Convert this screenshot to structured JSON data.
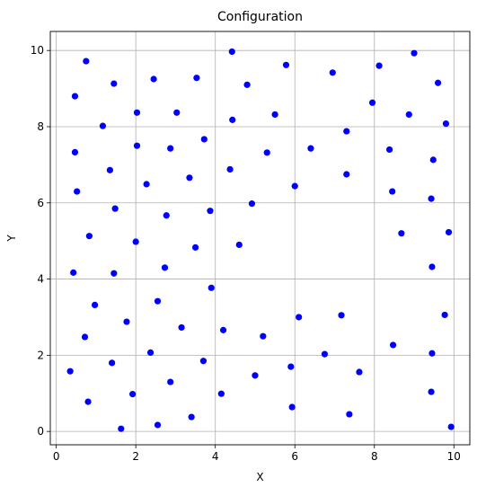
{
  "chart_data": {
    "type": "scatter",
    "title": "Configuration",
    "xlabel": "X",
    "ylabel": "Y",
    "xlim": [
      -0.15,
      10.4
    ],
    "ylim": [
      -0.35,
      10.5
    ],
    "xticks": [
      0,
      2,
      4,
      6,
      8,
      10
    ],
    "yticks": [
      0,
      2,
      4,
      6,
      8,
      10
    ],
    "grid": true,
    "marker_color": "#0000ff",
    "grid_color": "#b0b0b0",
    "points": [
      [
        0.75,
        9.72
      ],
      [
        0.47,
        8.8
      ],
      [
        1.45,
        9.13
      ],
      [
        2.45,
        9.25
      ],
      [
        3.53,
        9.28
      ],
      [
        4.42,
        9.97
      ],
      [
        4.8,
        9.1
      ],
      [
        5.78,
        9.62
      ],
      [
        6.95,
        9.42
      ],
      [
        8.12,
        9.6
      ],
      [
        9.0,
        9.93
      ],
      [
        9.6,
        9.15
      ],
      [
        1.17,
        8.02
      ],
      [
        2.03,
        8.37
      ],
      [
        3.03,
        8.37
      ],
      [
        4.43,
        8.18
      ],
      [
        5.5,
        8.32
      ],
      [
        7.95,
        8.63
      ],
      [
        8.87,
        8.32
      ],
      [
        9.8,
        8.08
      ],
      [
        7.3,
        7.88
      ],
      [
        3.72,
        7.67
      ],
      [
        0.47,
        7.33
      ],
      [
        2.03,
        7.5
      ],
      [
        2.87,
        7.43
      ],
      [
        5.3,
        7.32
      ],
      [
        6.4,
        7.43
      ],
      [
        8.38,
        7.4
      ],
      [
        9.48,
        7.13
      ],
      [
        1.35,
        6.86
      ],
      [
        4.37,
        6.88
      ],
      [
        3.35,
        6.66
      ],
      [
        7.3,
        6.75
      ],
      [
        2.27,
        6.49
      ],
      [
        0.52,
        6.3
      ],
      [
        8.45,
        6.3
      ],
      [
        6.0,
        6.44
      ],
      [
        9.43,
        6.11
      ],
      [
        4.92,
        5.98
      ],
      [
        1.48,
        5.85
      ],
      [
        3.87,
        5.79
      ],
      [
        2.77,
        5.67
      ],
      [
        9.87,
        5.23
      ],
      [
        0.83,
        5.13
      ],
      [
        8.68,
        5.2
      ],
      [
        2.0,
        4.98
      ],
      [
        3.5,
        4.83
      ],
      [
        4.6,
        4.9
      ],
      [
        0.43,
        4.17
      ],
      [
        1.45,
        4.15
      ],
      [
        2.73,
        4.3
      ],
      [
        9.45,
        4.32
      ],
      [
        3.9,
        3.77
      ],
      [
        2.55,
        3.42
      ],
      [
        0.97,
        3.32
      ],
      [
        6.1,
        3.0
      ],
      [
        7.17,
        3.05
      ],
      [
        9.77,
        3.06
      ],
      [
        1.77,
        2.88
      ],
      [
        3.15,
        2.73
      ],
      [
        4.2,
        2.66
      ],
      [
        0.72,
        2.48
      ],
      [
        5.2,
        2.5
      ],
      [
        8.47,
        2.27
      ],
      [
        2.37,
        2.07
      ],
      [
        6.75,
        2.03
      ],
      [
        9.45,
        2.05
      ],
      [
        3.7,
        1.85
      ],
      [
        1.4,
        1.8
      ],
      [
        5.9,
        1.7
      ],
      [
        0.35,
        1.58
      ],
      [
        5.0,
        1.47
      ],
      [
        7.62,
        1.56
      ],
      [
        2.87,
        1.3
      ],
      [
        1.92,
        0.98
      ],
      [
        4.15,
        0.99
      ],
      [
        9.43,
        1.04
      ],
      [
        0.8,
        0.78
      ],
      [
        5.93,
        0.64
      ],
      [
        7.37,
        0.45
      ],
      [
        3.4,
        0.38
      ],
      [
        2.55,
        0.17
      ],
      [
        1.63,
        0.07
      ],
      [
        9.93,
        0.12
      ]
    ]
  }
}
